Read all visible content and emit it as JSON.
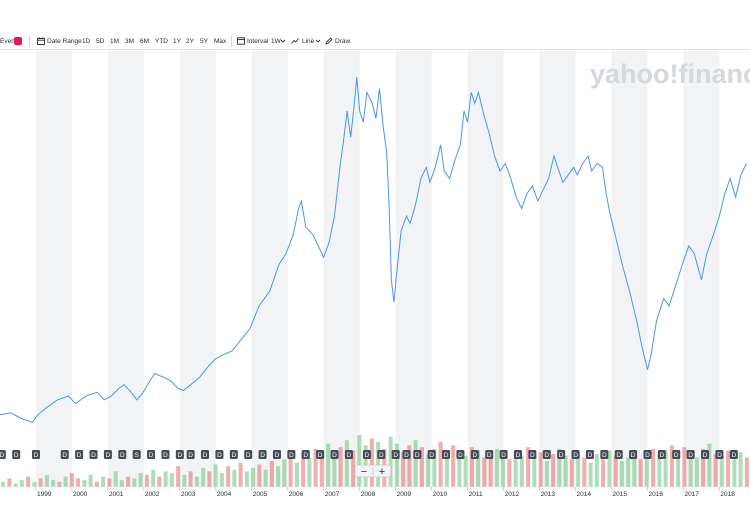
{
  "toolbar": {
    "events_label": "Events",
    "date_range_label": "Date Range",
    "ranges": [
      "1D",
      "5D",
      "1M",
      "3M",
      "6M",
      "YTD",
      "1Y",
      "2Y",
      "5Y",
      "Max"
    ],
    "interval_label": "Interval",
    "interval_value": "1W",
    "chart_type_label": "Line",
    "draw_label": "Draw"
  },
  "watermark": "yahoo!finance",
  "zoom_controls": {
    "minus": "−",
    "plus": "+"
  },
  "event_marker_label": "D",
  "split_marker_label": "S",
  "colors": {
    "line": "#4a97e8",
    "band": "#f1f3f4",
    "volume_up": "#6cc27c",
    "volume_down": "#e86a6a",
    "event_badge": "#444b52",
    "events_icon": "#e8175d"
  },
  "chart_data": {
    "type": "line",
    "title": "",
    "xlabel": "",
    "ylabel": "",
    "interval": "1W",
    "x_ticks": [
      "1999",
      "2000",
      "2001",
      "2002",
      "2003",
      "2004",
      "2005",
      "2006",
      "2007",
      "2008",
      "2009",
      "2010",
      "2011",
      "2012",
      "2013",
      "2014",
      "2015",
      "2016",
      "2017",
      "2018"
    ],
    "xlim": [
      1998.0,
      2018.85
    ],
    "ylim": [
      0,
      100
    ],
    "y_axis_labels_visible": false,
    "price_series": {
      "name": "Close (relative units)",
      "points": [
        [
          1998.0,
          7
        ],
        [
          1998.3,
          7.5
        ],
        [
          1998.6,
          6
        ],
        [
          1998.9,
          5
        ],
        [
          1999.05,
          7
        ],
        [
          1999.3,
          9
        ],
        [
          1999.6,
          11
        ],
        [
          1999.9,
          12
        ],
        [
          2000.1,
          10
        ],
        [
          2000.4,
          12
        ],
        [
          2000.7,
          13
        ],
        [
          2000.9,
          11
        ],
        [
          2001.1,
          12
        ],
        [
          2001.3,
          14
        ],
        [
          2001.45,
          15
        ],
        [
          2001.65,
          13
        ],
        [
          2001.8,
          11
        ],
        [
          2001.95,
          12.5
        ],
        [
          2002.1,
          15
        ],
        [
          2002.3,
          18
        ],
        [
          2002.55,
          17
        ],
        [
          2002.75,
          16
        ],
        [
          2002.95,
          14
        ],
        [
          2003.1,
          13.5
        ],
        [
          2003.3,
          15
        ],
        [
          2003.55,
          17
        ],
        [
          2003.8,
          20
        ],
        [
          2004.0,
          22
        ],
        [
          2004.2,
          23
        ],
        [
          2004.45,
          24
        ],
        [
          2004.7,
          27
        ],
        [
          2004.95,
          30
        ],
        [
          2005.2,
          36
        ],
        [
          2005.5,
          40
        ],
        [
          2005.75,
          47
        ],
        [
          2005.95,
          50
        ],
        [
          2006.15,
          55
        ],
        [
          2006.3,
          62
        ],
        [
          2006.38,
          64
        ],
        [
          2006.5,
          57
        ],
        [
          2006.7,
          55
        ],
        [
          2006.85,
          52
        ],
        [
          2007.0,
          49
        ],
        [
          2007.15,
          53
        ],
        [
          2007.3,
          60
        ],
        [
          2007.45,
          73
        ],
        [
          2007.55,
          80
        ],
        [
          2007.65,
          88
        ],
        [
          2007.75,
          81
        ],
        [
          2007.85,
          90
        ],
        [
          2007.92,
          97
        ],
        [
          2008.0,
          88
        ],
        [
          2008.1,
          85
        ],
        [
          2008.2,
          93
        ],
        [
          2008.35,
          90
        ],
        [
          2008.45,
          86
        ],
        [
          2008.55,
          94
        ],
        [
          2008.65,
          84
        ],
        [
          2008.75,
          77
        ],
        [
          2008.82,
          62
        ],
        [
          2008.88,
          43
        ],
        [
          2008.95,
          37
        ],
        [
          2009.05,
          47
        ],
        [
          2009.15,
          56
        ],
        [
          2009.3,
          60
        ],
        [
          2009.4,
          58
        ],
        [
          2009.55,
          63
        ],
        [
          2009.7,
          70
        ],
        [
          2009.85,
          73
        ],
        [
          2009.95,
          69
        ],
        [
          2010.1,
          73
        ],
        [
          2010.25,
          79
        ],
        [
          2010.35,
          72
        ],
        [
          2010.5,
          70
        ],
        [
          2010.65,
          75
        ],
        [
          2010.8,
          79
        ],
        [
          2010.9,
          88
        ],
        [
          2011.0,
          85
        ],
        [
          2011.1,
          93
        ],
        [
          2011.2,
          90
        ],
        [
          2011.3,
          93
        ],
        [
          2011.45,
          87
        ],
        [
          2011.6,
          82
        ],
        [
          2011.75,
          76
        ],
        [
          2011.9,
          72
        ],
        [
          2012.05,
          74
        ],
        [
          2012.2,
          70
        ],
        [
          2012.35,
          65
        ],
        [
          2012.5,
          62
        ],
        [
          2012.65,
          66
        ],
        [
          2012.8,
          68
        ],
        [
          2012.95,
          64
        ],
        [
          2013.1,
          67
        ],
        [
          2013.25,
          70
        ],
        [
          2013.4,
          76
        ],
        [
          2013.5,
          73
        ],
        [
          2013.65,
          69
        ],
        [
          2013.8,
          71
        ],
        [
          2013.95,
          73
        ],
        [
          2014.05,
          71
        ],
        [
          2014.2,
          74
        ],
        [
          2014.35,
          76
        ],
        [
          2014.45,
          72
        ],
        [
          2014.6,
          74
        ],
        [
          2014.75,
          73
        ],
        [
          2014.85,
          66
        ],
        [
          2014.95,
          61
        ],
        [
          2015.1,
          55
        ],
        [
          2015.3,
          47
        ],
        [
          2015.5,
          40
        ],
        [
          2015.7,
          32
        ],
        [
          2015.85,
          25
        ],
        [
          2016.0,
          19
        ],
        [
          2016.1,
          23
        ],
        [
          2016.25,
          32
        ],
        [
          2016.45,
          38
        ],
        [
          2016.6,
          36
        ],
        [
          2016.8,
          42
        ],
        [
          2017.0,
          48
        ],
        [
          2017.15,
          52
        ],
        [
          2017.3,
          50
        ],
        [
          2017.5,
          43
        ],
        [
          2017.65,
          50
        ],
        [
          2017.8,
          54
        ],
        [
          2018.0,
          60
        ],
        [
          2018.15,
          66
        ],
        [
          2018.3,
          70
        ],
        [
          2018.45,
          65
        ],
        [
          2018.6,
          71
        ],
        [
          2018.75,
          74
        ]
      ]
    },
    "volume_series": {
      "name": "Volume",
      "values_relative": [
        3,
        5,
        2,
        4,
        6,
        3,
        5,
        7,
        4,
        3,
        6,
        8,
        5,
        4,
        7,
        3,
        6,
        5,
        9,
        4,
        6,
        5,
        8,
        7,
        10,
        6,
        9,
        8,
        12,
        7,
        9,
        6,
        11,
        9,
        13,
        8,
        12,
        10,
        14,
        9,
        11,
        13,
        10,
        15,
        12,
        16,
        18,
        14,
        20,
        17,
        22,
        19,
        25,
        18,
        23,
        27,
        21,
        30,
        24,
        28,
        26,
        22,
        29,
        25,
        20,
        24,
        27,
        23,
        19,
        22,
        26,
        21,
        24,
        20,
        18,
        23,
        21,
        17,
        20,
        22,
        19,
        16,
        21,
        18,
        23,
        17,
        20,
        15,
        19,
        22,
        18,
        16,
        20,
        17,
        14,
        19,
        16,
        21,
        18,
        15,
        17,
        20,
        16,
        19,
        22,
        18,
        21,
        24,
        19,
        23,
        20,
        17,
        22,
        25,
        19,
        18,
        21,
        16,
        20,
        17
      ],
      "direction": [
        1,
        0,
        1,
        1,
        0,
        1,
        0,
        1,
        1,
        0,
        1,
        0,
        0,
        1,
        1,
        0,
        1,
        0,
        1,
        1,
        0,
        1,
        1,
        0,
        1,
        0,
        1,
        1,
        0,
        1,
        0,
        1,
        1,
        0,
        1,
        1,
        0,
        1,
        0,
        1,
        1,
        0,
        1,
        0,
        1,
        1,
        0,
        1,
        0,
        1,
        0,
        0,
        1,
        1,
        0,
        1,
        0,
        1,
        1,
        0,
        1,
        0,
        1,
        1,
        0,
        0,
        1,
        0,
        1,
        1,
        0,
        1,
        0,
        1,
        1,
        0,
        1,
        0,
        0,
        1,
        1,
        0,
        1,
        1,
        0,
        1,
        0,
        1,
        0,
        1,
        1,
        0,
        1,
        0,
        1,
        1,
        0,
        1,
        0,
        1,
        1,
        1,
        0,
        1,
        0,
        1,
        1,
        0,
        1,
        0,
        1,
        1,
        0,
        1,
        0,
        1,
        0,
        1,
        1,
        0
      ]
    },
    "event_markers": {
      "dividends_x": [
        1998.05,
        1998.45,
        1999.0,
        1999.8,
        2000.2,
        2000.6,
        2001.0,
        2001.4,
        2002.2,
        2002.6,
        2003.0,
        2003.3,
        2003.7,
        2004.1,
        2004.5,
        2004.9,
        2005.3,
        2005.7,
        2006.1,
        2006.5,
        2006.9,
        2007.3,
        2007.7,
        2008.2,
        2008.6,
        2009.0,
        2009.3,
        2009.6,
        2010.0,
        2010.4,
        2010.8,
        2011.2,
        2011.6,
        2012.0,
        2012.4,
        2012.8,
        2013.2,
        2013.6,
        2014.0,
        2014.4,
        2014.8,
        2015.2,
        2015.6,
        2016.0,
        2016.4,
        2016.8,
        2017.2,
        2017.6,
        2018.0,
        2018.4
      ],
      "splits_x": [
        2001.8
      ]
    }
  }
}
